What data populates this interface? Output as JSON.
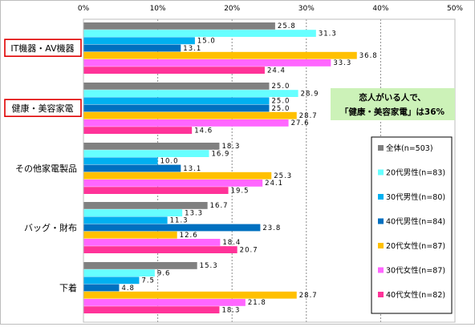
{
  "chart_data": {
    "type": "bar",
    "orientation": "horizontal",
    "xlim": [
      0,
      50
    ],
    "tick_labels": [
      "0%",
      "10%",
      "20%",
      "30%",
      "40%",
      "50%"
    ],
    "categories": [
      "IT機器・AV機器",
      "健康・美容家電",
      "その他家電製品",
      "バッグ・財布",
      "下着"
    ],
    "highlighted_categories": [
      0,
      1
    ],
    "series": [
      {
        "name": "全体(n=503)",
        "color": "#808080",
        "values": [
          25.8,
          25.0,
          18.3,
          16.7,
          15.3
        ]
      },
      {
        "name": "20代男性(n=83)",
        "color": "#66ffff",
        "values": [
          31.3,
          28.9,
          16.9,
          13.3,
          9.6
        ]
      },
      {
        "name": "30代男性(n=80)",
        "color": "#00b0f0",
        "values": [
          15.0,
          25.0,
          10.0,
          11.3,
          7.5
        ]
      },
      {
        "name": "40代男性(n=84)",
        "color": "#0070c0",
        "values": [
          13.1,
          25.0,
          13.1,
          23.8,
          4.8
        ]
      },
      {
        "name": "20代女性(n=87)",
        "color": "#ffc000",
        "values": [
          36.8,
          28.7,
          25.3,
          12.6,
          28.7
        ]
      },
      {
        "name": "30代女性(n=87)",
        "color": "#ff66ff",
        "values": [
          33.3,
          27.6,
          24.1,
          18.4,
          21.8
        ]
      },
      {
        "name": "40代女性(n=82)",
        "color": "#ff3399",
        "values": [
          24.4,
          14.6,
          19.5,
          20.7,
          18.3
        ]
      }
    ],
    "annotation": {
      "lines": [
        "恋人がいる人で、",
        "「健康・美容家電」は36%"
      ],
      "background": "#ccf2b8"
    },
    "highlight_color": "#e00000",
    "grid": true,
    "legend_position": "right"
  }
}
